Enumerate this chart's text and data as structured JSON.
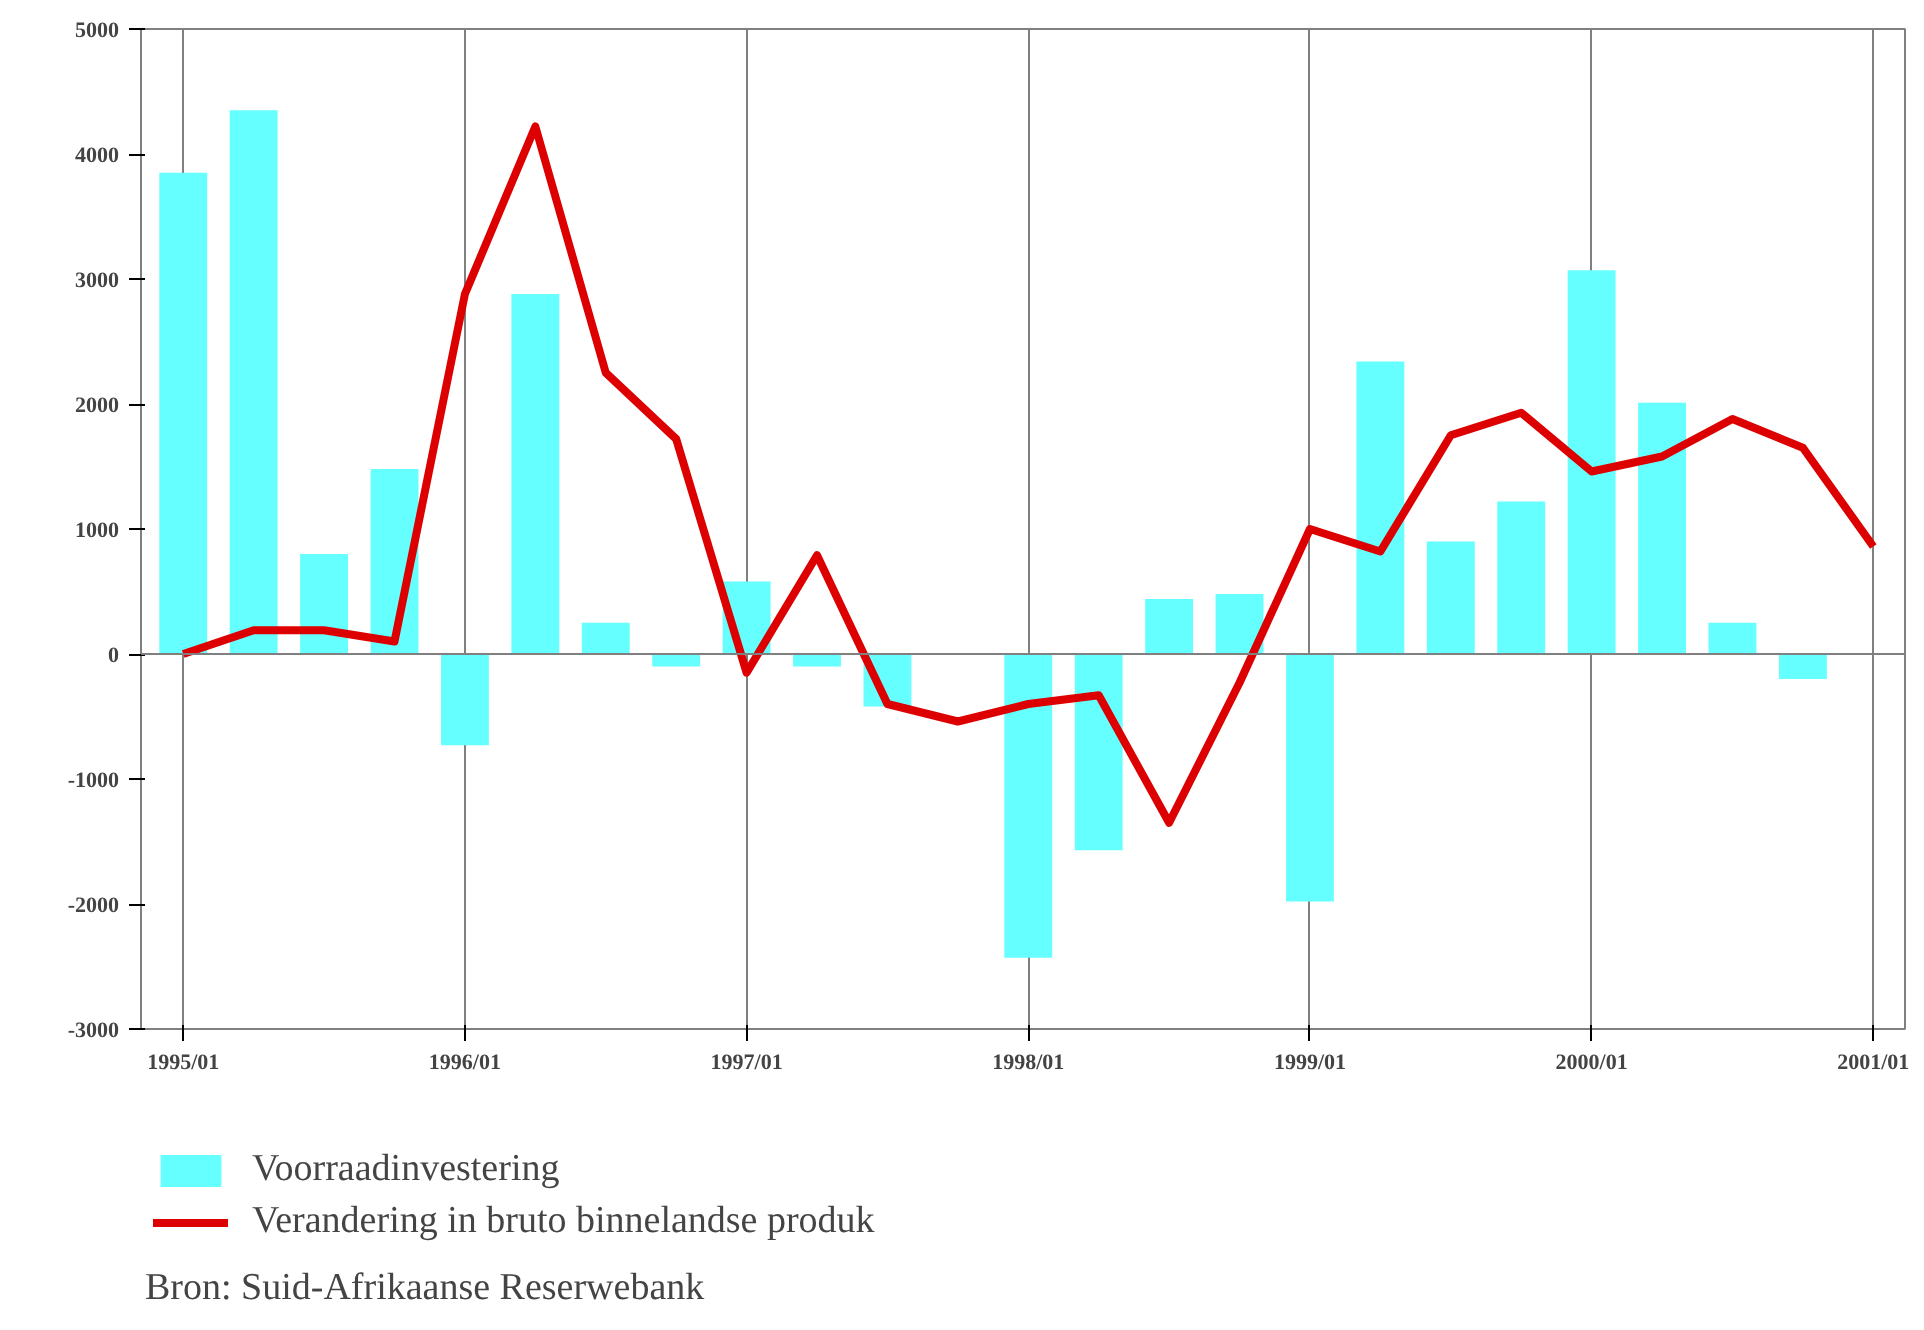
{
  "chart_data": {
    "type": "bar",
    "categories": [
      "1995/01",
      null,
      null,
      null,
      "1996/01",
      null,
      null,
      null,
      "1997/01",
      null,
      null,
      null,
      "1998/01",
      null,
      null,
      null,
      "1999/01",
      null,
      null,
      null,
      "2000/01",
      null,
      null,
      null,
      "2001/01"
    ],
    "series": [
      {
        "name": "Voorraadinvestering",
        "color": "#66ffff",
        "values": [
          3850,
          4350,
          800,
          1480,
          -730,
          2880,
          250,
          -100,
          580,
          -100,
          -420,
          null,
          -2430,
          -1570,
          440,
          480,
          -1980,
          2340,
          900,
          1220,
          3070,
          2010,
          250,
          -200,
          null
        ]
      },
      {
        "name": "Verandering in bruto binnelandse produk",
        "type": "line",
        "color": "#dd0000",
        "values": [
          0,
          190,
          190,
          100,
          2880,
          4220,
          2250,
          1720,
          -150,
          790,
          -400,
          -540,
          -400,
          -330,
          -1350,
          -230,
          1000,
          820,
          1750,
          1930,
          1460,
          1580,
          1880,
          1650,
          860
        ]
      }
    ],
    "ylim": [
      -3000,
      5000
    ],
    "yticks": [
      -3000,
      -2000,
      -1000,
      0,
      1000,
      2000,
      3000,
      4000,
      5000
    ],
    "grid": "x",
    "legend": "bottom",
    "line_style": "solid",
    "marker": "none",
    "ref_lines": [
      {
        "axis": "y",
        "value": 0,
        "color": "#808080"
      }
    ],
    "annotations": [
      "Bron:  Suid-Afrikaanse Reserwebank"
    ]
  }
}
